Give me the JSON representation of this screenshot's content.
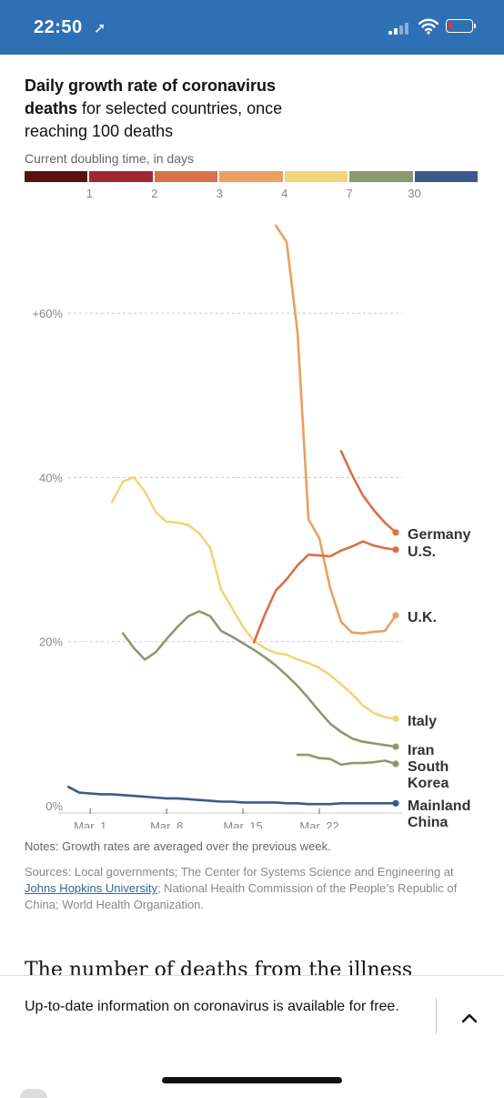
{
  "status_bar": {
    "time": "22:50",
    "location_glyph": "➚"
  },
  "chart_data": {
    "type": "line",
    "title_bold": "Daily growth rate of coronavirus deaths",
    "title_rest": " for selected countries, once reaching 100 deaths",
    "legend_title": "Current doubling time, in days",
    "legend_ticks": [
      "1",
      "2",
      "3",
      "4",
      "7",
      "30"
    ],
    "legend_colors": [
      "#5c1010",
      "#9e2a2f",
      "#d97048",
      "#e8a063",
      "#f2d57a",
      "#8c9970",
      "#3b5a8a"
    ],
    "y_ticks": [
      {
        "value": 0,
        "label": "0%"
      },
      {
        "value": 20,
        "label": "20%"
      },
      {
        "value": 40,
        "label": "40%"
      },
      {
        "value": 60,
        "label": "+60%"
      }
    ],
    "x_ticks": [
      {
        "day": 1,
        "label": "Mar. 1"
      },
      {
        "day": 8,
        "label": "Mar. 8"
      },
      {
        "day": 15,
        "label": "Mar. 15"
      },
      {
        "day": 22,
        "label": "Mar. 22"
      }
    ],
    "xlabel": "",
    "ylabel": "",
    "ylim": [
      0,
      71
    ],
    "xlim": [
      -1.1,
      29.5
    ],
    "series": [
      {
        "name": "Mainland China",
        "color": "#3b5a8a",
        "x": [
          -1,
          0,
          1,
          2,
          3,
          4,
          5,
          6,
          7,
          8,
          9,
          10,
          11,
          12,
          13,
          14,
          15,
          16,
          17,
          18,
          19,
          20,
          21,
          22,
          23,
          24,
          25,
          26,
          27,
          28,
          29
        ],
        "y": [
          2.3,
          1.6,
          1.5,
          1.4,
          1.4,
          1.3,
          1.2,
          1.1,
          1.0,
          0.9,
          0.9,
          0.8,
          0.7,
          0.6,
          0.5,
          0.5,
          0.4,
          0.4,
          0.4,
          0.4,
          0.3,
          0.3,
          0.2,
          0.2,
          0.2,
          0.3,
          0.3,
          0.3,
          0.3,
          0.3,
          0.3
        ]
      },
      {
        "name": "South Korea",
        "color": "#8c9970",
        "x": [
          20,
          21,
          22,
          23,
          24,
          25,
          26,
          27,
          28,
          29
        ],
        "y": [
          6.2,
          6.2,
          5.8,
          5.7,
          5.0,
          5.2,
          5.2,
          5.3,
          5.5,
          5.1
        ]
      },
      {
        "name": "Iran",
        "color": "#8c9970",
        "x": [
          4,
          5,
          6,
          7,
          8,
          9,
          10,
          11,
          12,
          13,
          14,
          15,
          16,
          17,
          18,
          19,
          20,
          21,
          22,
          23,
          24,
          25,
          26,
          27,
          28,
          29
        ],
        "y": [
          21,
          19.2,
          17.8,
          18.7,
          20.3,
          21.8,
          23.1,
          23.7,
          23.1,
          21.3,
          20.6,
          19.8,
          19.0,
          18.1,
          17.1,
          15.9,
          14.6,
          13.1,
          11.5,
          10.0,
          9.0,
          8.2,
          7.8,
          7.6,
          7.4,
          7.2
        ]
      },
      {
        "name": "Italy",
        "color": "#f2d57a",
        "x": [
          3,
          4,
          5,
          6,
          7,
          8,
          9,
          10,
          11,
          12,
          13,
          14,
          15,
          16,
          17,
          18,
          19,
          20,
          21,
          22,
          23,
          24,
          25,
          26,
          27,
          28,
          29
        ],
        "y": [
          37,
          39.5,
          40,
          38.3,
          35.8,
          34.6,
          34.5,
          34.2,
          33.2,
          31.4,
          26.3,
          24.1,
          21.8,
          20.1,
          19.2,
          18.6,
          18.4,
          17.8,
          17.4,
          16.8,
          15.9,
          14.8,
          13.6,
          12.2,
          11.3,
          10.8,
          10.6
        ]
      },
      {
        "name": "U.K.",
        "color": "#e8a063",
        "x": [
          18,
          19,
          20,
          21,
          22,
          23,
          24,
          25,
          26,
          27,
          28,
          29
        ],
        "y": [
          70.7,
          68.7,
          57.6,
          34.9,
          32.6,
          26.5,
          22.4,
          21.1,
          21.0,
          21.2,
          21.3,
          23.2
        ]
      },
      {
        "name": "U.S.",
        "color": "#d97048",
        "x": [
          16,
          17,
          18,
          19,
          20,
          21,
          22,
          23,
          24,
          25,
          26,
          27,
          28,
          29
        ],
        "y": [
          19.9,
          23.3,
          26.2,
          27.6,
          29.3,
          30.6,
          30.5,
          30.4,
          31.1,
          31.6,
          32.2,
          31.7,
          31.4,
          31.2
        ]
      },
      {
        "name": "Germany",
        "color": "#d97048",
        "x": [
          24,
          25,
          26,
          27,
          28,
          29
        ],
        "y": [
          43.2,
          40.3,
          37.8,
          36.0,
          34.5,
          33.3
        ]
      }
    ],
    "end_labels": [
      {
        "lines": [
          "Germany"
        ],
        "series": "Germany"
      },
      {
        "lines": [
          "U.S."
        ],
        "series": "U.S."
      },
      {
        "lines": [
          "U.K."
        ],
        "series": "U.K."
      },
      {
        "lines": [
          "Italy"
        ],
        "series": "Italy"
      },
      {
        "lines": [
          "Iran"
        ],
        "series": "Iran"
      },
      {
        "lines": [
          "South",
          "Korea"
        ],
        "series": "South Korea"
      },
      {
        "lines": [
          "Mainland",
          "China"
        ],
        "series": "Mainland China"
      }
    ]
  },
  "notes": "Notes: Growth rates are averaged over the previous week.",
  "sources": {
    "prefix": "Sources: Local governments; The Center for Systems Science and Engineering at ",
    "link": "Johns Hopkins University",
    "suffix": "; National Health Commission of the People’s Republic of China; World Health Organization."
  },
  "article_snippet": "The number of deaths from the illness known",
  "banner": {
    "text": "Up-to-date information on coronavirus is available for free."
  }
}
